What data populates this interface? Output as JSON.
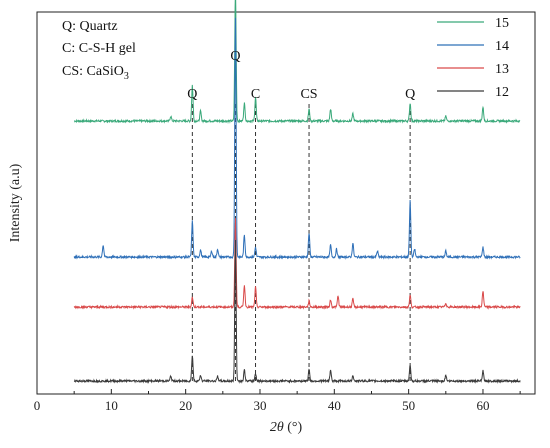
{
  "chart_data": {
    "type": "line",
    "xlabel_italic": "2θ",
    "xlabel_unit": "(°)",
    "ylabel": "Intensity (a.u)",
    "xlim": [
      0,
      67
    ],
    "x_ticks": [
      0,
      10,
      20,
      30,
      40,
      50,
      60
    ],
    "y_ticks_shown": false,
    "legend_position": "top-right",
    "annotations": [
      {
        "prefix": "Q: ",
        "name": "Quartz",
        "sub": ""
      },
      {
        "prefix": "C: ",
        "name": "C-S-H gel",
        "sub": ""
      },
      {
        "prefix": "CS: ",
        "name": "CaSiO",
        "sub": "3"
      }
    ],
    "phase_markers": [
      {
        "label": "Q",
        "x": 20.9
      },
      {
        "label": "Q",
        "x": 26.7
      },
      {
        "label": "C",
        "x": 29.4
      },
      {
        "label": "CS",
        "x": 36.6
      },
      {
        "label": "Q",
        "x": 50.2
      }
    ],
    "series": [
      {
        "name": "15",
        "color": "#3aa97a",
        "baseline": 6.5,
        "peaks": [
          [
            18.0,
            0.12
          ],
          [
            20.9,
            0.9
          ],
          [
            22.0,
            0.25
          ],
          [
            26.7,
            3.3
          ],
          [
            27.9,
            0.45
          ],
          [
            29.4,
            0.6
          ],
          [
            36.6,
            0.3
          ],
          [
            39.5,
            0.3
          ],
          [
            42.5,
            0.18
          ],
          [
            50.2,
            0.45
          ],
          [
            55.0,
            0.12
          ],
          [
            60.0,
            0.35
          ]
        ]
      },
      {
        "name": "14",
        "color": "#2f70b8",
        "baseline": 3.1,
        "peaks": [
          [
            8.9,
            0.3
          ],
          [
            20.9,
            0.9
          ],
          [
            22.0,
            0.18
          ],
          [
            23.5,
            0.15
          ],
          [
            24.3,
            0.2
          ],
          [
            26.7,
            6.0
          ],
          [
            27.9,
            0.55
          ],
          [
            29.4,
            0.25
          ],
          [
            36.6,
            0.6
          ],
          [
            39.5,
            0.3
          ],
          [
            40.3,
            0.2
          ],
          [
            42.5,
            0.35
          ],
          [
            45.8,
            0.15
          ],
          [
            50.2,
            1.4
          ],
          [
            50.8,
            0.2
          ],
          [
            55.0,
            0.15
          ],
          [
            60.0,
            0.25
          ]
        ]
      },
      {
        "name": "13",
        "color": "#d94a4a",
        "baseline": 1.85,
        "peaks": [
          [
            20.9,
            0.25
          ],
          [
            26.7,
            2.2
          ],
          [
            27.9,
            0.55
          ],
          [
            29.4,
            0.5
          ],
          [
            36.6,
            0.15
          ],
          [
            39.5,
            0.18
          ],
          [
            40.5,
            0.28
          ],
          [
            42.5,
            0.2
          ],
          [
            50.2,
            0.3
          ],
          [
            55.0,
            0.1
          ],
          [
            60.0,
            0.4
          ]
        ]
      },
      {
        "name": "12",
        "color": "#3a3a3a",
        "baseline": 0.0,
        "peaks": [
          [
            18.0,
            0.12
          ],
          [
            20.9,
            0.65
          ],
          [
            22.0,
            0.15
          ],
          [
            24.3,
            0.12
          ],
          [
            26.7,
            3.5
          ],
          [
            27.9,
            0.28
          ],
          [
            29.4,
            0.2
          ],
          [
            36.6,
            0.3
          ],
          [
            39.5,
            0.28
          ],
          [
            42.5,
            0.15
          ],
          [
            50.2,
            0.4
          ],
          [
            55.0,
            0.15
          ],
          [
            60.0,
            0.25
          ]
        ]
      }
    ]
  }
}
